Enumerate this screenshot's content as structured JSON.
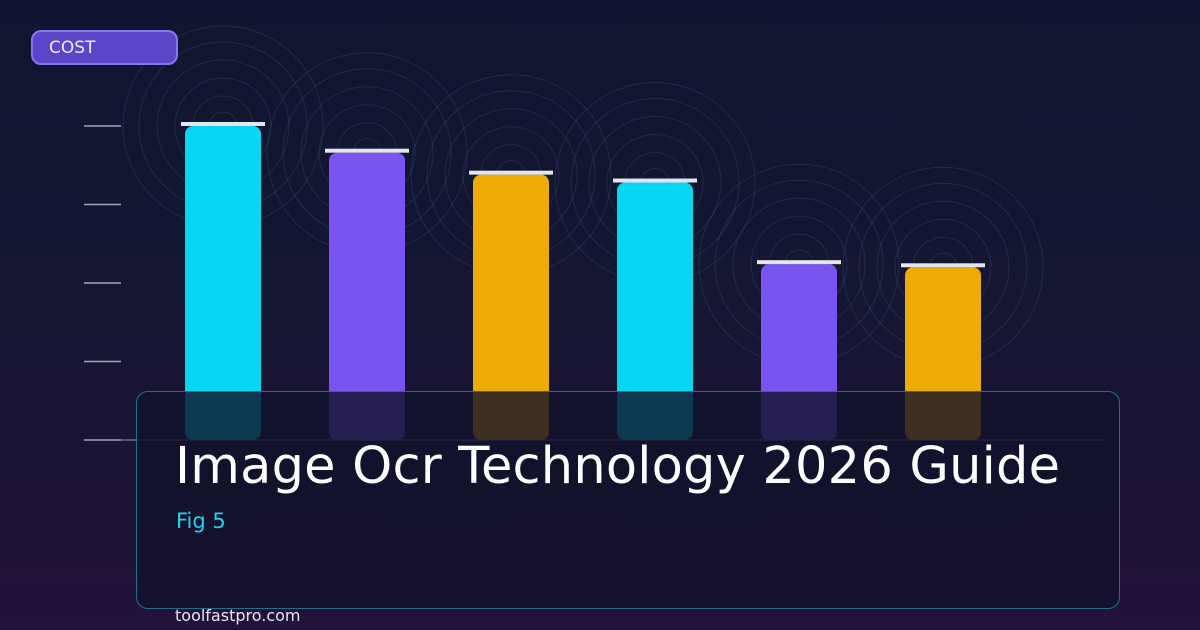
{
  "badge": {
    "label": "COST"
  },
  "caption": {
    "title": "Image Ocr Technology 2026 Guide",
    "subtitle": "Fig 5",
    "site": "toolfastpro.com"
  },
  "colors": {
    "cyan": "#06d6f2",
    "purple": "#7755ee",
    "gold": "#eeab06",
    "cap": "#e4e6ef",
    "axis": "#c8cbd6",
    "panel_border": "#1f6f88",
    "badge_fill": "#5b45c8"
  },
  "chart_data": {
    "type": "bar",
    "ylabel": "COST",
    "ylim": [
      0,
      100
    ],
    "grid": false,
    "yticks": [
      0,
      25,
      50,
      75,
      100
    ],
    "values": [
      100,
      91.5,
      84.5,
      82,
      56,
      55
    ],
    "bar_colors": [
      "cyan",
      "purple",
      "gold",
      "cyan",
      "purple",
      "gold"
    ]
  }
}
